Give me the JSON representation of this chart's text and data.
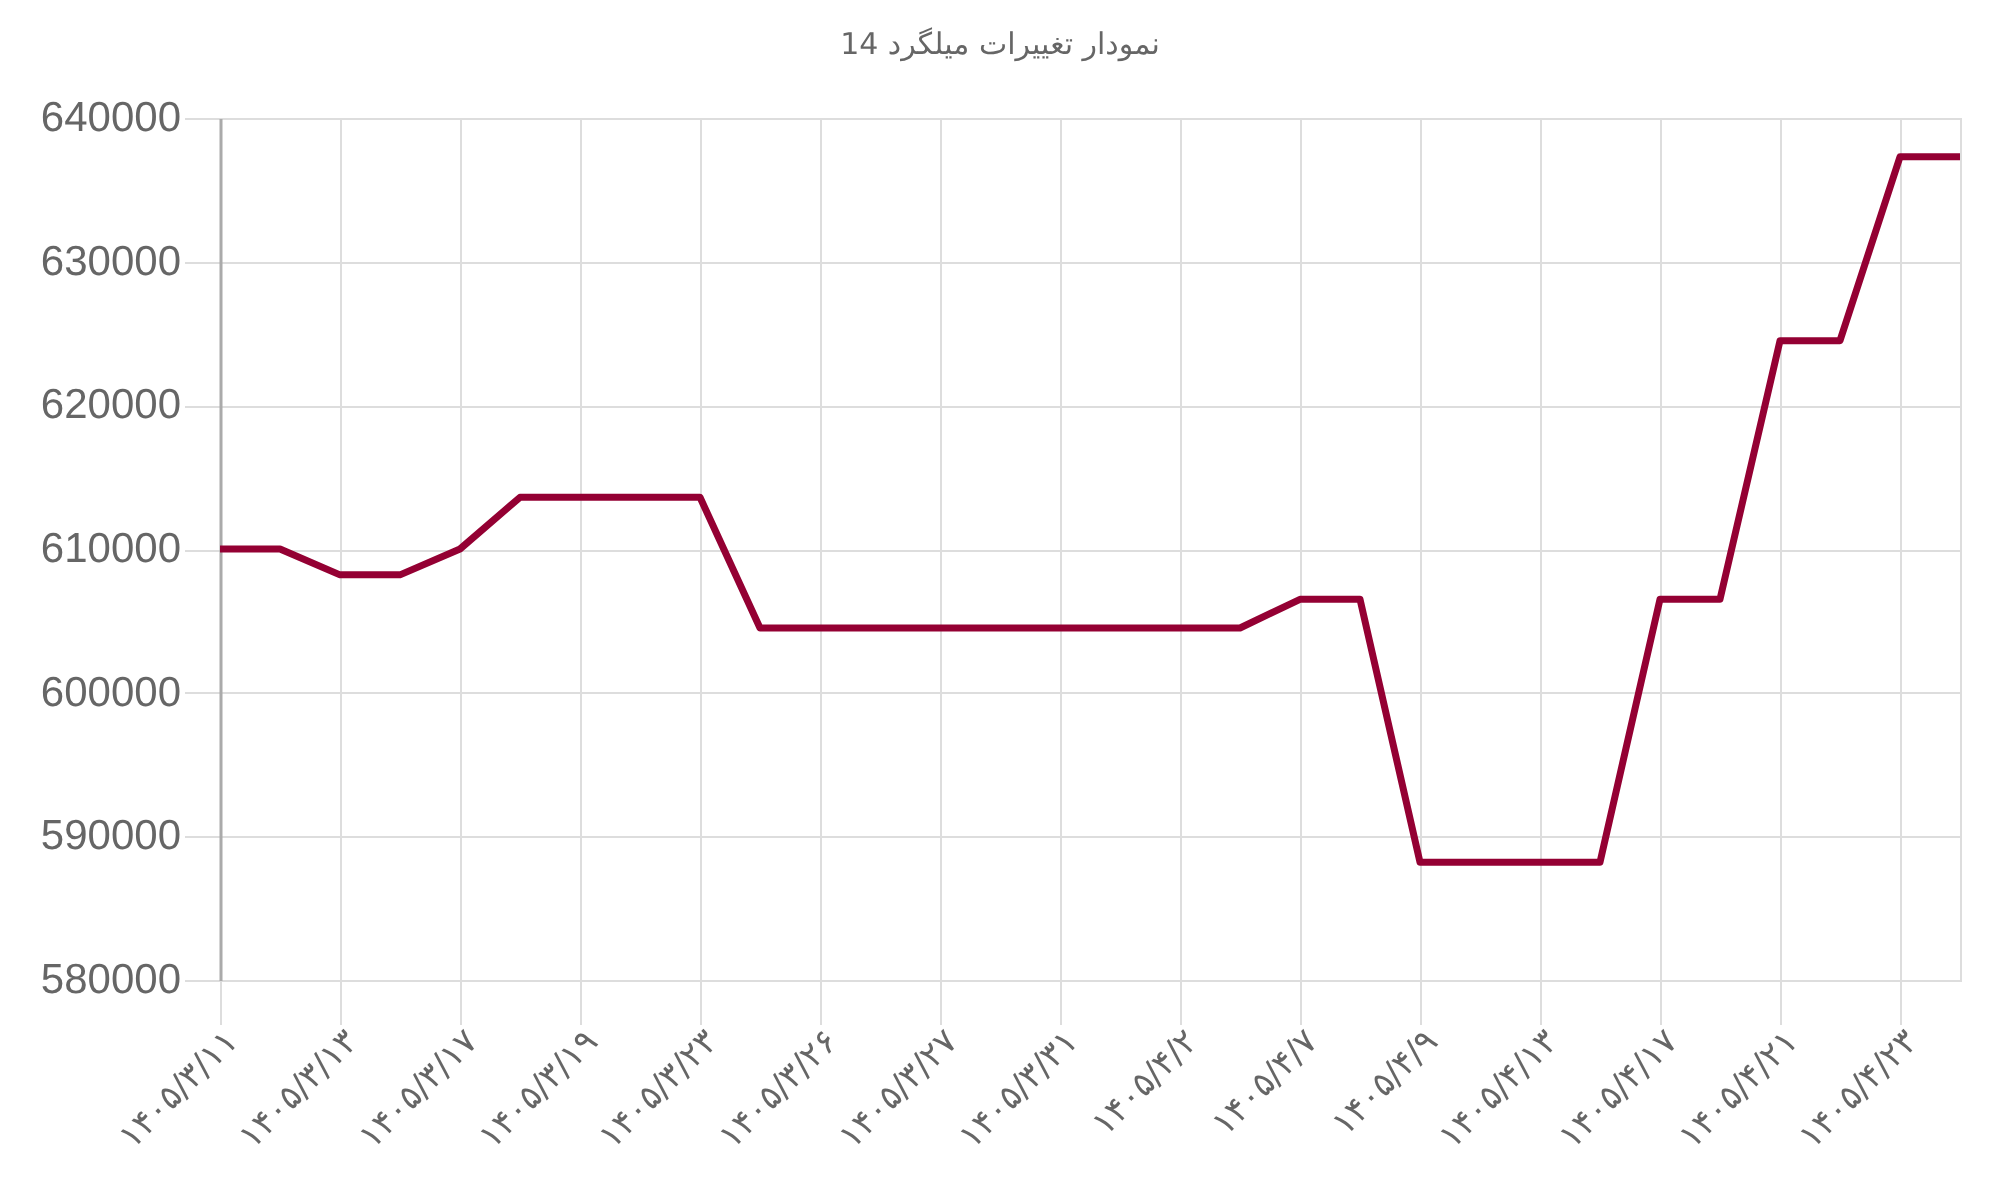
{
  "chart_data": {
    "type": "line",
    "title": "نمودار تغییرات میلگرد 14",
    "categories": [
      "۱۴۰۵/۳/۱۱",
      null,
      "۱۴۰۵/۳/۱۳",
      null,
      "۱۴۰۵/۳/۱۷",
      null,
      "۱۴۰۵/۳/۱۹",
      null,
      "۱۴۰۵/۳/۲۳",
      null,
      "۱۴۰۵/۳/۲۶",
      null,
      "۱۴۰۵/۳/۲۷",
      null,
      "۱۴۰۵/۳/۳۱",
      null,
      "۱۴۰۵/۴/۲",
      null,
      "۱۴۰۵/۴/۷",
      null,
      "۱۴۰۵/۴/۹",
      null,
      "۱۴۰۵/۴/۱۳",
      null,
      "۱۴۰۵/۴/۱۷",
      null,
      "۱۴۰۵/۴/۲۱",
      null,
      "۱۴۰۵/۴/۲۳",
      null
    ],
    "values": [
      610000,
      610000,
      608200,
      608200,
      610000,
      613600,
      613600,
      613600,
      613600,
      604500,
      604500,
      604500,
      604500,
      604500,
      604500,
      604500,
      604500,
      604500,
      606500,
      606500,
      588200,
      588200,
      588200,
      588200,
      606500,
      606500,
      624500,
      624500,
      637300,
      637300
    ],
    "color": "#940033",
    "ylim": [
      580000,
      640000
    ],
    "yticks": [
      580000,
      590000,
      600000,
      610000,
      620000,
      630000,
      640000
    ],
    "grid": true
  }
}
